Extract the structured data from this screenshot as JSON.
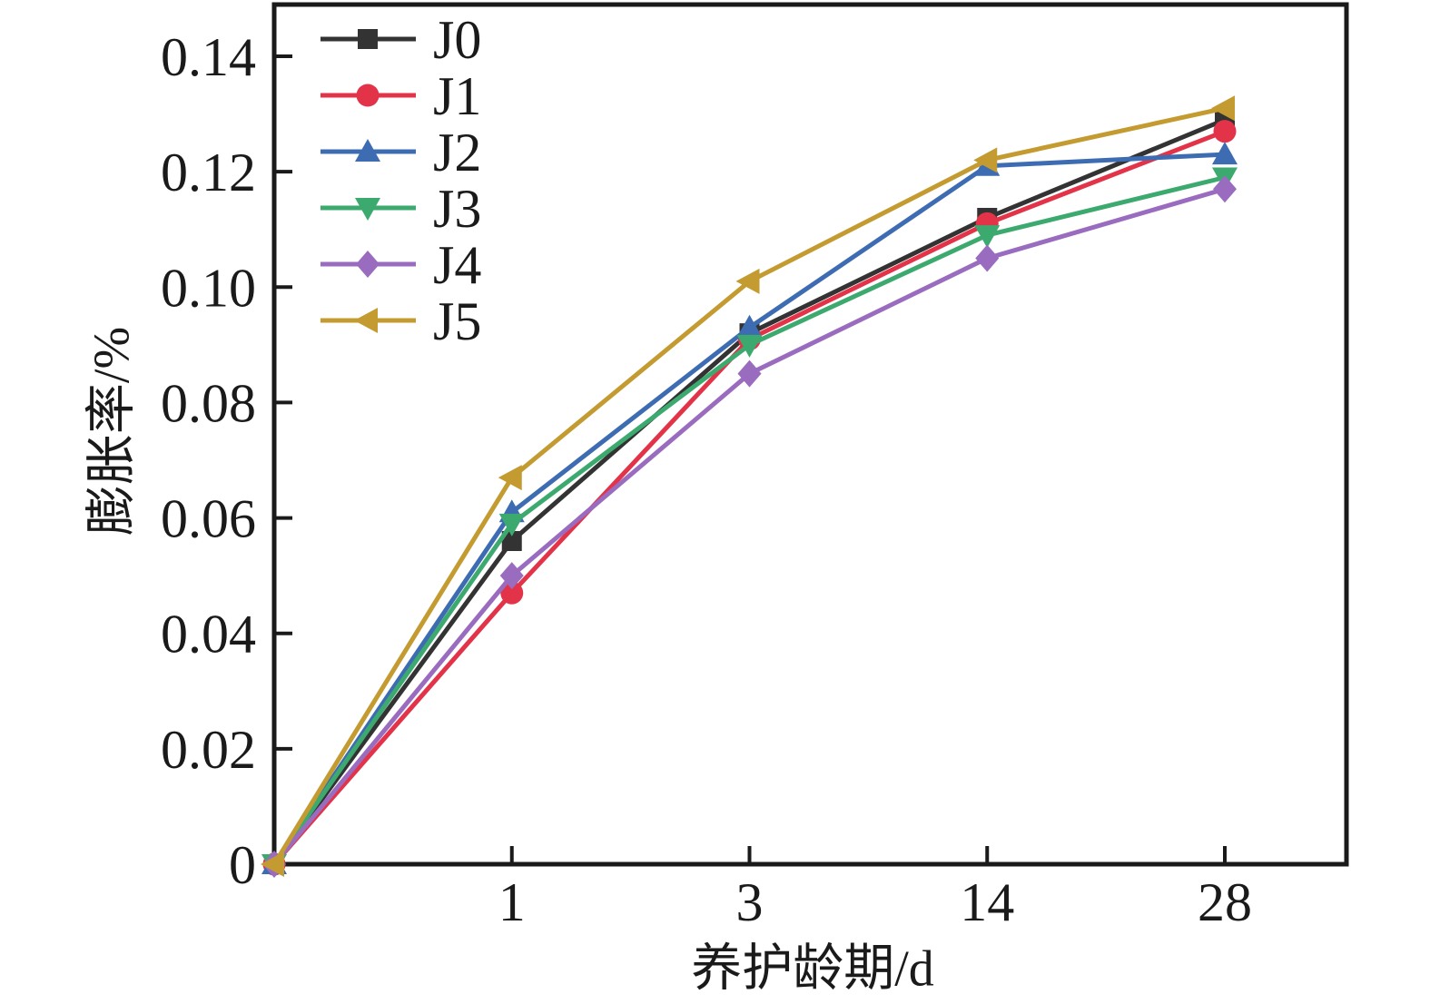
{
  "figure": {
    "background": "#ffffff",
    "axis_color": "#1a1a1a"
  },
  "chart_data": {
    "type": "line",
    "title": "",
    "xlabel": "养护龄期/d",
    "ylabel": "膨胀率/%",
    "x": [
      0,
      1,
      3,
      14,
      28
    ],
    "x_tick_labels": [
      "1",
      "3",
      "14",
      "28"
    ],
    "y_tick_values": [
      0,
      0.02,
      0.04,
      0.06,
      0.08,
      0.1,
      0.12,
      0.14
    ],
    "y_tick_labels": [
      "0",
      "0.02",
      "0.04",
      "0.06",
      "0.08",
      "0.10",
      "0.12",
      "0.14"
    ],
    "ylim": [
      0,
      0.148
    ],
    "grid": "off",
    "legend_position": "top-left",
    "x_axis_scale": "equally-spaced-categories",
    "series": [
      {
        "name": "J0",
        "color": "#333333",
        "marker": "square",
        "values": [
          0,
          0.056,
          0.092,
          0.112,
          0.129
        ]
      },
      {
        "name": "J1",
        "color": "#e23349",
        "marker": "circle",
        "values": [
          0,
          0.047,
          0.091,
          0.111,
          0.127
        ]
      },
      {
        "name": "J2",
        "color": "#3d6cb3",
        "marker": "triangle-up",
        "values": [
          0,
          0.061,
          0.093,
          0.121,
          0.123
        ]
      },
      {
        "name": "J3",
        "color": "#3caa6e",
        "marker": "triangle-down",
        "values": [
          0,
          0.059,
          0.09,
          0.109,
          0.119
        ]
      },
      {
        "name": "J4",
        "color": "#9a6cc0",
        "marker": "diamond",
        "values": [
          0,
          0.05,
          0.085,
          0.105,
          0.117
        ]
      },
      {
        "name": "J5",
        "color": "#c49b30",
        "marker": "triangle-left",
        "values": [
          0,
          0.067,
          0.101,
          0.122,
          0.131
        ]
      }
    ]
  }
}
